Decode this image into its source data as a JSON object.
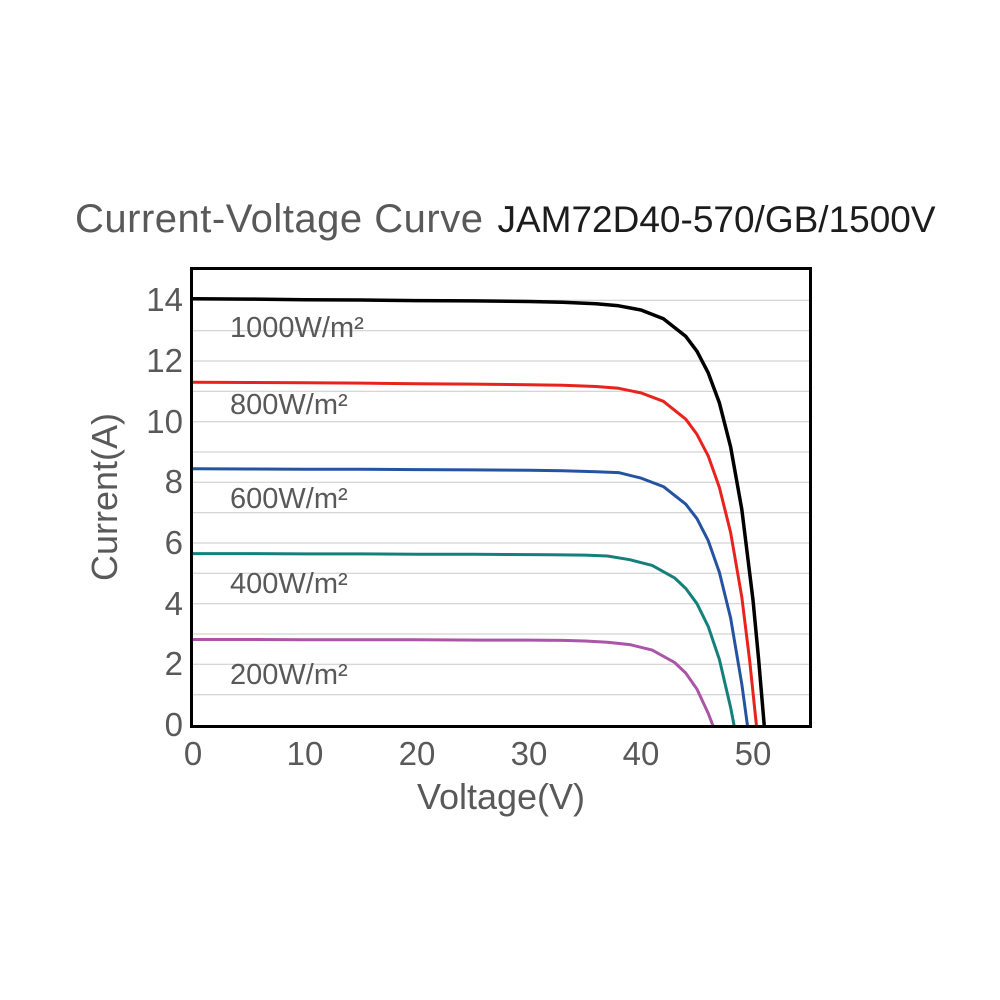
{
  "title": {
    "main": "Current-Voltage Curve",
    "model": "JAM72D40-570/GB/1500V"
  },
  "axes": {
    "x": {
      "title": "Voltage(V)",
      "tick_values": [
        0,
        10,
        20,
        30,
        40,
        50
      ]
    },
    "y": {
      "title": "Current(A)",
      "tick_values": [
        0,
        2,
        4,
        6,
        8,
        10,
        12,
        14
      ]
    }
  },
  "style": {
    "axis_text_color": "#595959",
    "grid_color": "#c9c9c9",
    "axis_frame_color": "#000000",
    "background": "#ffffff"
  },
  "chart_data": {
    "type": "line",
    "title": "Current-Voltage Curve JAM72D40-570/GB/1500V",
    "xlabel": "Voltage(V)",
    "ylabel": "Current(A)",
    "xlim": [
      0,
      55
    ],
    "ylim": [
      0,
      15
    ],
    "x_major_tick": 10,
    "y_major_tick": 2,
    "y_gridline_step": 1,
    "grid": "horizontal-only",
    "legend_position": "inline-labels-below-curves",
    "series": [
      {
        "name": "1000W/m²",
        "color": "#000000",
        "line_width": 3.5,
        "isc_A": 14.05,
        "voc_V": 51.0,
        "label_anchor": [
          3.3,
          13.1
        ],
        "points": [
          [
            0,
            14.05
          ],
          [
            5,
            14.04
          ],
          [
            10,
            14.02
          ],
          [
            15,
            14.01
          ],
          [
            20,
            13.99
          ],
          [
            25,
            13.98
          ],
          [
            30,
            13.96
          ],
          [
            33,
            13.94
          ],
          [
            36,
            13.89
          ],
          [
            38,
            13.82
          ],
          [
            40,
            13.68
          ],
          [
            42,
            13.39
          ],
          [
            44,
            12.81
          ],
          [
            45,
            12.32
          ],
          [
            46,
            11.61
          ],
          [
            47,
            10.62
          ],
          [
            48,
            9.17
          ],
          [
            49,
            7.11
          ],
          [
            50,
            4.12
          ],
          [
            50.5,
            2.17
          ],
          [
            51,
            0
          ]
        ]
      },
      {
        "name": "800W/m²",
        "color": "#e8231d",
        "line_width": 3,
        "isc_A": 11.3,
        "voc_V": 50.3,
        "label_anchor": [
          3.3,
          10.55
        ],
        "points": [
          [
            0,
            11.3
          ],
          [
            5,
            11.29
          ],
          [
            10,
            11.28
          ],
          [
            15,
            11.27
          ],
          [
            20,
            11.25
          ],
          [
            25,
            11.24
          ],
          [
            30,
            11.22
          ],
          [
            33,
            11.2
          ],
          [
            36,
            11.16
          ],
          [
            38,
            11.1
          ],
          [
            40,
            10.95
          ],
          [
            42,
            10.67
          ],
          [
            44,
            10.08
          ],
          [
            45,
            9.58
          ],
          [
            46,
            8.87
          ],
          [
            47,
            7.83
          ],
          [
            48,
            6.35
          ],
          [
            49,
            4.22
          ],
          [
            49.7,
            2.14
          ],
          [
            50.3,
            0
          ]
        ]
      },
      {
        "name": "600W/m²",
        "color": "#2553a3",
        "line_width": 3,
        "isc_A": 8.45,
        "voc_V": 49.5,
        "label_anchor": [
          3.3,
          7.45
        ],
        "points": [
          [
            0,
            8.45
          ],
          [
            5,
            8.44
          ],
          [
            10,
            8.43
          ],
          [
            15,
            8.43
          ],
          [
            20,
            8.42
          ],
          [
            25,
            8.41
          ],
          [
            30,
            8.4
          ],
          [
            33,
            8.38
          ],
          [
            36,
            8.35
          ],
          [
            38,
            8.32
          ],
          [
            40,
            8.14
          ],
          [
            42,
            7.86
          ],
          [
            44,
            7.28
          ],
          [
            45,
            6.8
          ],
          [
            46,
            6.08
          ],
          [
            47,
            5.03
          ],
          [
            48,
            3.53
          ],
          [
            49,
            1.35
          ],
          [
            49.5,
            0
          ]
        ]
      },
      {
        "name": "400W/m²",
        "color": "#15807b",
        "line_width": 3,
        "isc_A": 5.65,
        "voc_V": 48.3,
        "label_anchor": [
          3.3,
          4.65
        ],
        "points": [
          [
            0,
            5.65
          ],
          [
            5,
            5.65
          ],
          [
            10,
            5.64
          ],
          [
            15,
            5.64
          ],
          [
            20,
            5.63
          ],
          [
            25,
            5.63
          ],
          [
            28,
            5.62
          ],
          [
            32,
            5.61
          ],
          [
            35,
            5.6
          ],
          [
            37,
            5.57
          ],
          [
            39,
            5.45
          ],
          [
            41,
            5.26
          ],
          [
            43,
            4.85
          ],
          [
            44,
            4.5
          ],
          [
            45,
            4.0
          ],
          [
            46,
            3.25
          ],
          [
            47,
            2.16
          ],
          [
            48,
            0.58
          ],
          [
            48.3,
            0
          ]
        ]
      },
      {
        "name": "200W/m²",
        "color": "#aa55a6",
        "line_width": 3,
        "isc_A": 2.82,
        "voc_V": 46.4,
        "label_anchor": [
          3.3,
          1.65
        ],
        "points": [
          [
            0,
            2.82
          ],
          [
            5,
            2.82
          ],
          [
            10,
            2.81
          ],
          [
            15,
            2.81
          ],
          [
            20,
            2.81
          ],
          [
            26,
            2.8
          ],
          [
            30,
            2.8
          ],
          [
            33,
            2.79
          ],
          [
            35,
            2.77
          ],
          [
            37,
            2.73
          ],
          [
            39,
            2.65
          ],
          [
            41,
            2.47
          ],
          [
            43,
            2.06
          ],
          [
            44,
            1.71
          ],
          [
            45,
            1.18
          ],
          [
            46,
            0.39
          ],
          [
            46.4,
            0
          ]
        ]
      }
    ]
  }
}
